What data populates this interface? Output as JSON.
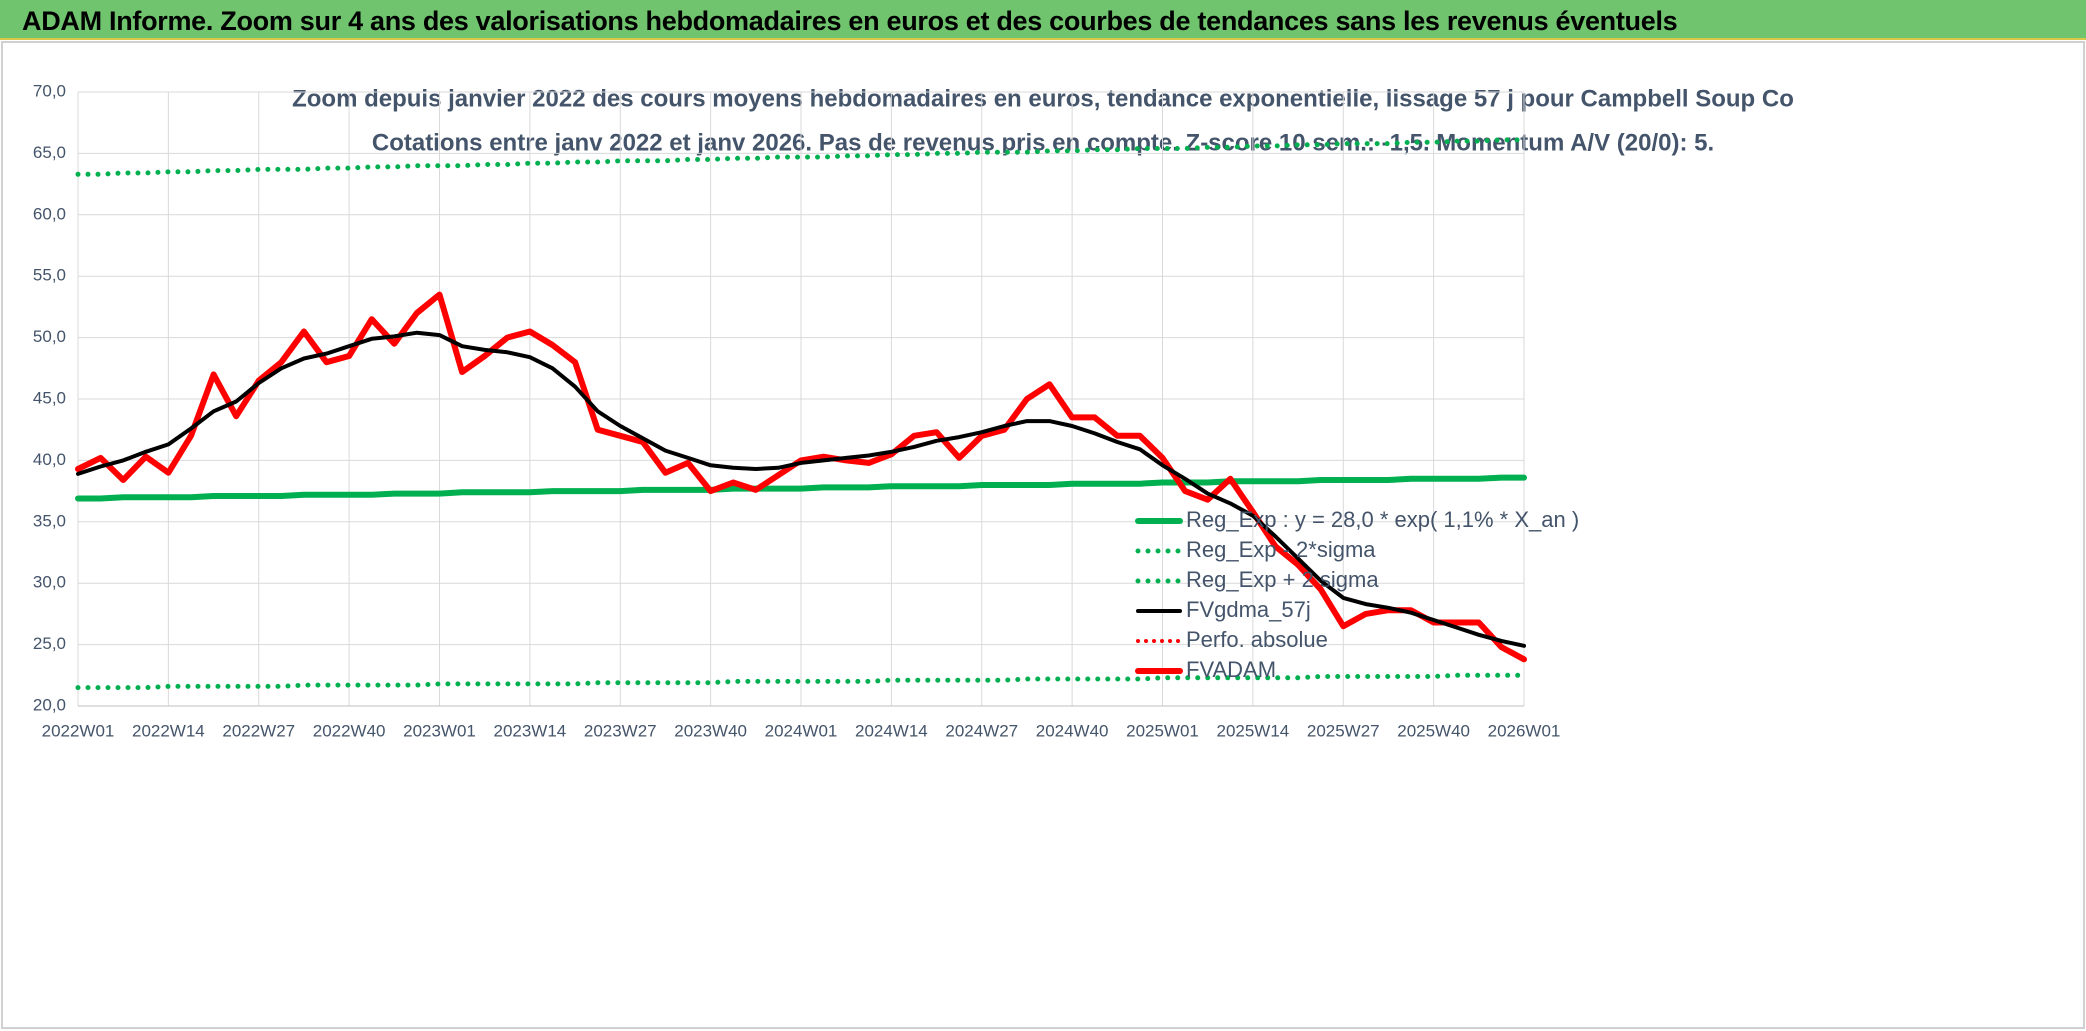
{
  "header": {
    "title": "ADAM Informe. Zoom sur 4 ans des valorisations hebdomadaires en euros et des courbes de tendances sans les revenus éventuels"
  },
  "chart_data": {
    "type": "line",
    "title": "Zoom depuis janvier 2022 des cours moyens hebdomadaires en euros, tendance exponentielle, lissage 57 j pour Campbell Soup Co",
    "subtitle": "Cotations entre janv 2022 et janv 2026. Pas de revenus pris en compte. Z-score 10 sem.: -1,5. Momentum A/V (20/0): 5.",
    "categories": [
      "2022W01",
      null,
      null,
      null,
      "2022W14",
      null,
      null,
      null,
      "2022W27",
      null,
      null,
      null,
      "2022W40",
      null,
      null,
      null,
      "2023W01",
      null,
      null,
      null,
      "2023W14",
      null,
      null,
      null,
      "2023W27",
      null,
      null,
      null,
      "2023W40",
      null,
      null,
      null,
      "2024W01",
      null,
      null,
      null,
      "2024W14",
      null,
      null,
      null,
      "2024W27",
      null,
      null,
      null,
      "2024W40",
      null,
      null,
      null,
      "2025W01",
      null,
      null,
      null,
      "2025W14",
      null,
      null,
      null,
      "2025W27",
      null,
      null,
      null,
      "2025W40",
      null,
      null,
      null,
      "2026W01"
    ],
    "ylim": [
      20,
      70
    ],
    "yticks": [
      {
        "value": 20,
        "label": "20,0"
      },
      {
        "value": 25,
        "label": "25,0"
      },
      {
        "value": 30,
        "label": "30,0"
      },
      {
        "value": 35,
        "label": "35,0"
      },
      {
        "value": 40,
        "label": "40,0"
      },
      {
        "value": 45,
        "label": "45,0"
      },
      {
        "value": 50,
        "label": "50,0"
      },
      {
        "value": 55,
        "label": "55,0"
      },
      {
        "value": 60,
        "label": "60,0"
      },
      {
        "value": 65,
        "label": "65,0"
      },
      {
        "value": 70,
        "label": "70,0"
      }
    ],
    "grid": true,
    "legend": "right",
    "series": [
      {
        "name": "Reg_Exp : y = 28,0 * exp( 1,1% *  X_an )",
        "color": "#00b050",
        "style": "solid",
        "width": 6,
        "values": [
          36.9,
          36.9,
          37.0,
          37.0,
          37.0,
          37.0,
          37.1,
          37.1,
          37.1,
          37.1,
          37.2,
          37.2,
          37.2,
          37.2,
          37.3,
          37.3,
          37.3,
          37.4,
          37.4,
          37.4,
          37.4,
          37.5,
          37.5,
          37.5,
          37.5,
          37.6,
          37.6,
          37.6,
          37.6,
          37.7,
          37.7,
          37.7,
          37.7,
          37.8,
          37.8,
          37.8,
          37.9,
          37.9,
          37.9,
          37.9,
          38.0,
          38.0,
          38.0,
          38.0,
          38.1,
          38.1,
          38.1,
          38.1,
          38.2,
          38.2,
          38.2,
          38.3,
          38.3,
          38.3,
          38.3,
          38.4,
          38.4,
          38.4,
          38.4,
          38.5,
          38.5,
          38.5,
          38.5,
          38.6,
          38.6
        ]
      },
      {
        "name": "Reg_Exp - 2*sigma",
        "color": "#00b050",
        "style": "dotted",
        "width": 5,
        "values": [
          21.5,
          21.5,
          21.5,
          21.5,
          21.6,
          21.6,
          21.6,
          21.6,
          21.6,
          21.6,
          21.7,
          21.7,
          21.7,
          21.7,
          21.7,
          21.7,
          21.8,
          21.8,
          21.8,
          21.8,
          21.8,
          21.8,
          21.8,
          21.9,
          21.9,
          21.9,
          21.9,
          21.9,
          21.9,
          22.0,
          22.0,
          22.0,
          22.0,
          22.0,
          22.0,
          22.0,
          22.1,
          22.1,
          22.1,
          22.1,
          22.1,
          22.1,
          22.2,
          22.2,
          22.2,
          22.2,
          22.2,
          22.2,
          22.3,
          22.3,
          22.3,
          22.3,
          22.3,
          22.3,
          22.3,
          22.4,
          22.4,
          22.4,
          22.4,
          22.4,
          22.4,
          22.5,
          22.5,
          22.5,
          22.5
        ]
      },
      {
        "name": "Reg_Exp + 2 sigma",
        "color": "#00b050",
        "style": "dotted",
        "width": 5,
        "values": [
          63.3,
          63.3,
          63.4,
          63.4,
          63.5,
          63.5,
          63.6,
          63.6,
          63.7,
          63.7,
          63.7,
          63.8,
          63.8,
          63.9,
          63.9,
          64.0,
          64.0,
          64.0,
          64.1,
          64.1,
          64.2,
          64.2,
          64.3,
          64.3,
          64.4,
          64.4,
          64.4,
          64.5,
          64.5,
          64.6,
          64.6,
          64.7,
          64.7,
          64.7,
          64.8,
          64.8,
          64.9,
          64.9,
          65.0,
          65.0,
          65.1,
          65.1,
          65.1,
          65.2,
          65.2,
          65.3,
          65.3,
          65.4,
          65.4,
          65.4,
          65.5,
          65.5,
          65.6,
          65.6,
          65.7,
          65.7,
          65.8,
          65.8,
          65.8,
          65.9,
          65.9,
          66.0,
          66.0,
          66.1,
          66.1
        ]
      },
      {
        "name": "FVgdma_57j",
        "color": "#000000",
        "style": "solid",
        "width": 4,
        "values": [
          38.9,
          39.5,
          40.0,
          40.7,
          41.3,
          42.6,
          44.0,
          44.8,
          46.3,
          47.5,
          48.3,
          48.7,
          49.3,
          49.9,
          50.1,
          50.4,
          50.2,
          49.3,
          49.0,
          48.8,
          48.4,
          47.5,
          46.0,
          44.0,
          42.8,
          41.8,
          40.8,
          40.2,
          39.6,
          39.4,
          39.3,
          39.4,
          39.8,
          40.0,
          40.2,
          40.4,
          40.7,
          41.1,
          41.6,
          41.9,
          42.3,
          42.8,
          43.2,
          43.2,
          42.8,
          42.2,
          41.5,
          40.9,
          39.6,
          38.5,
          37.3,
          36.5,
          35.5,
          33.8,
          32.0,
          30.2,
          28.8,
          28.3,
          28.0,
          27.6,
          27.0,
          26.4,
          25.8,
          25.3,
          24.9
        ]
      },
      {
        "name": "Perfo. absolue",
        "color": "#ff0000",
        "style": "dotted",
        "width": 4,
        "values": [
          null,
          null,
          null,
          null,
          null,
          null,
          null,
          null,
          null,
          null,
          null,
          null,
          null,
          null,
          null,
          null,
          null,
          null,
          null,
          null,
          null,
          null,
          null,
          null,
          null,
          null,
          null,
          null,
          null,
          null,
          null,
          null,
          null,
          null,
          null,
          null,
          null,
          null,
          null,
          null,
          null,
          null,
          null,
          null,
          null,
          null,
          null,
          null,
          null,
          null,
          null,
          null,
          null,
          null,
          null,
          null,
          null,
          null,
          null,
          null,
          null,
          null,
          null,
          null,
          null
        ]
      },
      {
        "name": "FVADAM",
        "color": "#ff0000",
        "style": "solid",
        "width": 6,
        "values": [
          39.3,
          40.2,
          38.4,
          40.3,
          39.0,
          42.0,
          47.0,
          43.6,
          46.5,
          48.0,
          50.5,
          48.0,
          48.5,
          51.5,
          49.5,
          52.0,
          53.5,
          47.2,
          48.5,
          50.0,
          50.5,
          49.4,
          48.0,
          42.5,
          42.0,
          41.5,
          39.0,
          39.8,
          37.5,
          38.2,
          37.6,
          38.8,
          40.0,
          40.3,
          40.0,
          39.8,
          40.5,
          42.0,
          42.3,
          40.2,
          42.0,
          42.5,
          45.0,
          46.2,
          43.5,
          43.5,
          42.0,
          42.0,
          40.2,
          37.5,
          36.8,
          38.5,
          35.8,
          33.0,
          31.5,
          29.5,
          26.5,
          27.5,
          27.8,
          27.8,
          26.8,
          26.8,
          26.8,
          24.8,
          23.8
        ]
      }
    ]
  }
}
